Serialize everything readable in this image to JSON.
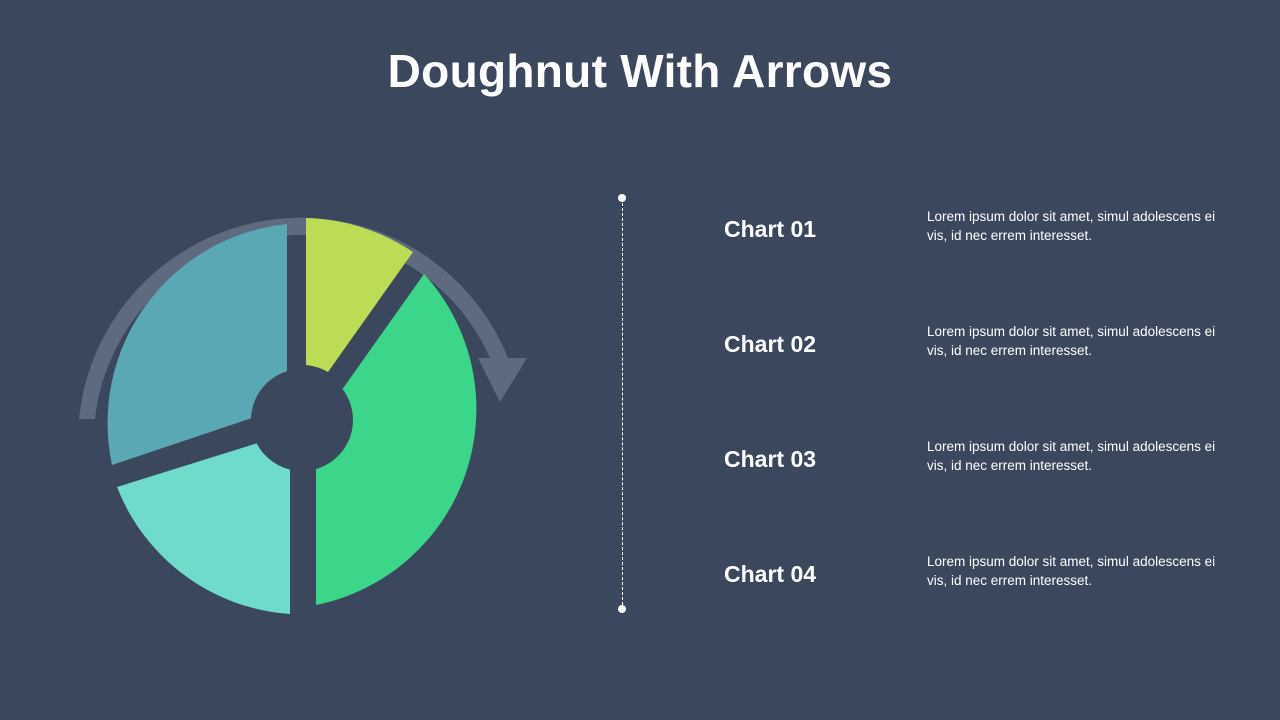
{
  "title": "Doughnut With Arrows",
  "colors": {
    "background": "#3a475d",
    "arrow": "#5e6a7e",
    "chart01": "#bddc55",
    "chart02": "#3cd68a",
    "chart03": "#6fdccb",
    "chart04": "#5aa8b3"
  },
  "items": [
    {
      "label": "Chart 01",
      "desc": "Lorem  ipsum dolor sit amet,  simul adolescens ei vis, id nec errem  interesset."
    },
    {
      "label": "Chart 02",
      "desc": "Lorem  ipsum dolor sit amet,  simul adolescens ei vis, id nec errem  interesset."
    },
    {
      "label": "Chart 03",
      "desc": "Lorem  ipsum dolor sit amet,  simul adolescens ei vis, id nec errem  interesset."
    },
    {
      "label": "Chart 04",
      "desc": "Lorem  ipsum dolor sit amet,  simul adolescens ei vis, id nec errem  interesset."
    }
  ]
}
